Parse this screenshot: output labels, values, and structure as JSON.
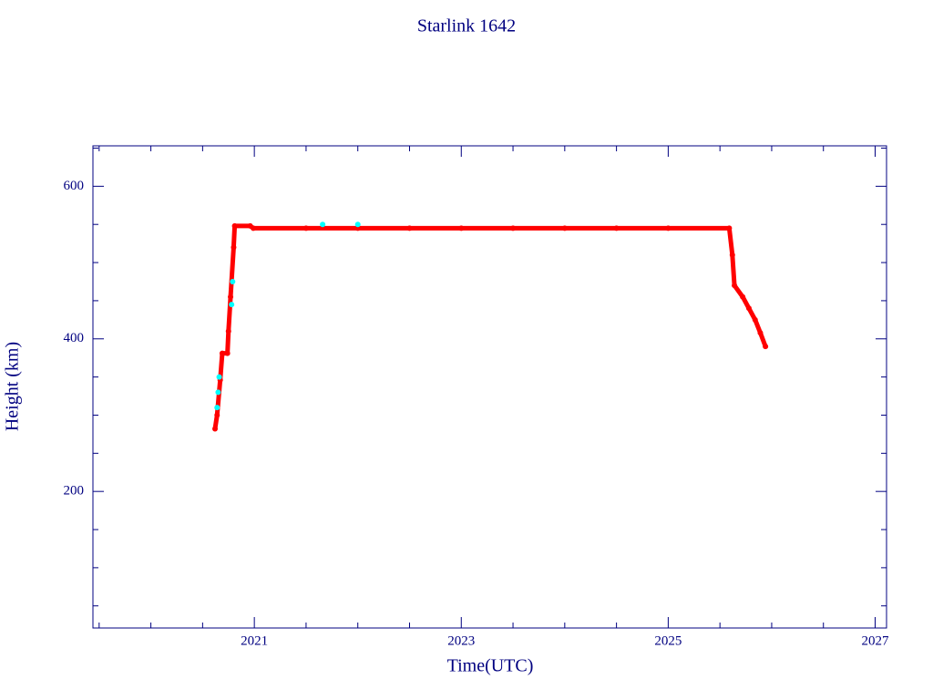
{
  "chart_data": {
    "type": "scatter",
    "title": "Starlink 1642",
    "x_label": "Time(UTC)",
    "y_label": "Height (km)",
    "xlim": [
      2019.44,
      2027.11
    ],
    "ylim": [
      21,
      653
    ],
    "xticks": [
      2021,
      2023,
      2025,
      2027
    ],
    "yticks": [
      200,
      400,
      600
    ],
    "minor_xticks": [
      2019.5,
      2020,
      2020.5,
      2021.5,
      2022,
      2022.5,
      2023.5,
      2024,
      2024.5,
      2025.5,
      2026,
      2026.5
    ],
    "minor_yticks": [
      50,
      100,
      150,
      250,
      300,
      350,
      450,
      500,
      550,
      650
    ],
    "axis_color": "#000080",
    "series": [
      {
        "color": "#ff0000",
        "x": [
          2020.62,
          2020.64,
          2020.67,
          2020.69,
          2020.74,
          2020.75,
          2020.77,
          2020.8,
          2020.81,
          2020.96,
          2020.99,
          2021.5,
          2022,
          2022.5,
          2023,
          2023.5,
          2024,
          2024.5,
          2025,
          2025.59,
          2025.62,
          2025.64,
          2025.72,
          2025.78,
          2025.84,
          2025.89,
          2025.94
        ],
        "values": [
          282,
          300,
          346,
          381,
          381,
          410,
          455,
          520,
          548,
          548,
          545,
          545,
          545,
          545,
          545,
          545,
          545,
          545,
          545,
          545,
          510,
          470,
          455,
          440,
          425,
          408,
          390
        ]
      },
      {
        "color": "#00ffff",
        "x": [
          2020.64,
          2020.65,
          2020.66,
          2020.78,
          2020.79,
          2021.66,
          2022.0
        ],
        "values": [
          310,
          330,
          350,
          445,
          475,
          550,
          550
        ]
      }
    ]
  }
}
